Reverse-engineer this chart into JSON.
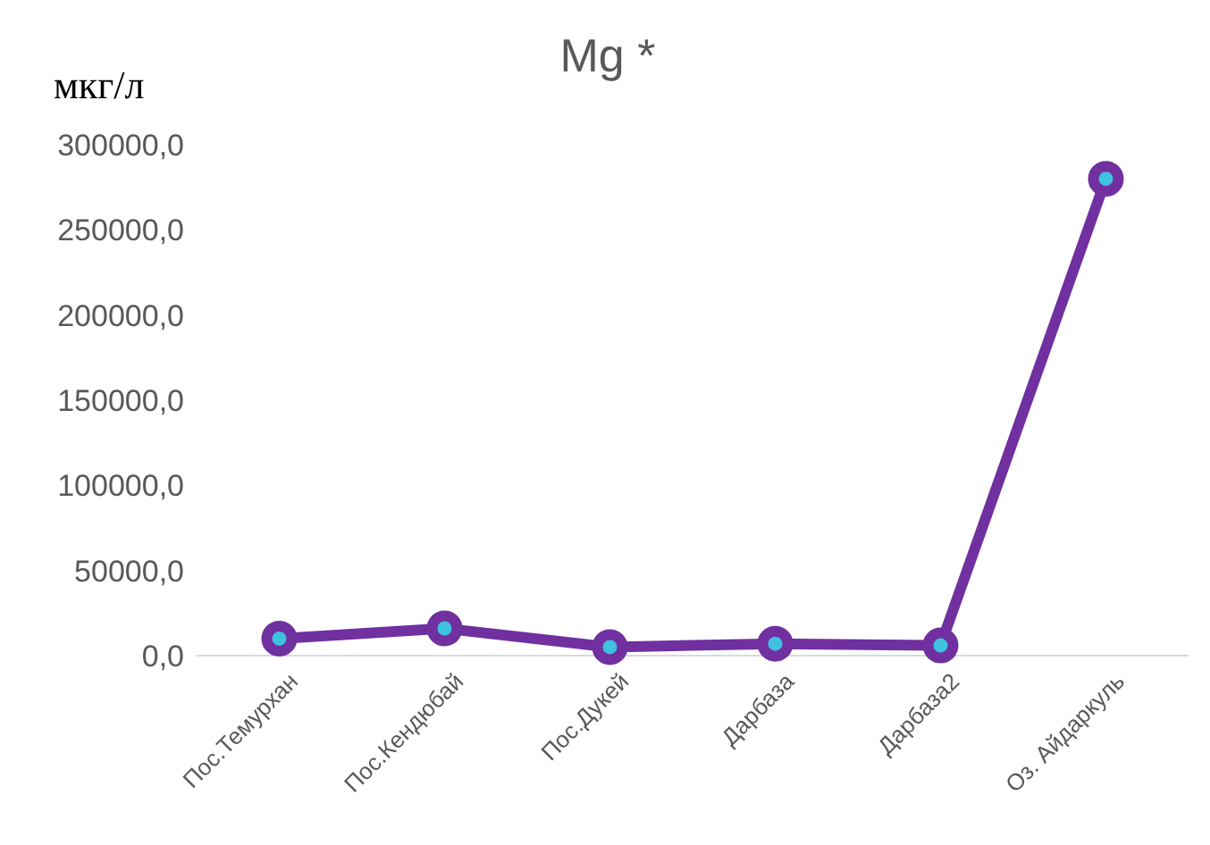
{
  "chart_data": {
    "type": "line",
    "title": "Mg *",
    "ylabel": "мкг/л",
    "categories": [
      "Пос.Темурхан",
      "Пос.Кендюбай",
      "Пос.Дукей",
      "Дарбаза",
      "Дарбаза2",
      "Оз. Айдаркуль"
    ],
    "series": [
      {
        "color": "#7030a0",
        "values": [
          10000,
          16000,
          5000,
          7000,
          6000,
          280000
        ]
      }
    ],
    "ylim": [
      0,
      300000
    ],
    "yticks": [
      {
        "value": 0,
        "label": "0,0"
      },
      {
        "value": 50000,
        "label": "50000,0"
      },
      {
        "value": 100000,
        "label": "100000,0"
      },
      {
        "value": 150000,
        "label": "150000,0"
      },
      {
        "value": 200000,
        "label": "200000,0"
      },
      {
        "value": 250000,
        "label": "250000,0"
      },
      {
        "value": 300000,
        "label": "300000,0"
      }
    ],
    "grid": false,
    "marker": "circle",
    "line_style": "solid"
  }
}
